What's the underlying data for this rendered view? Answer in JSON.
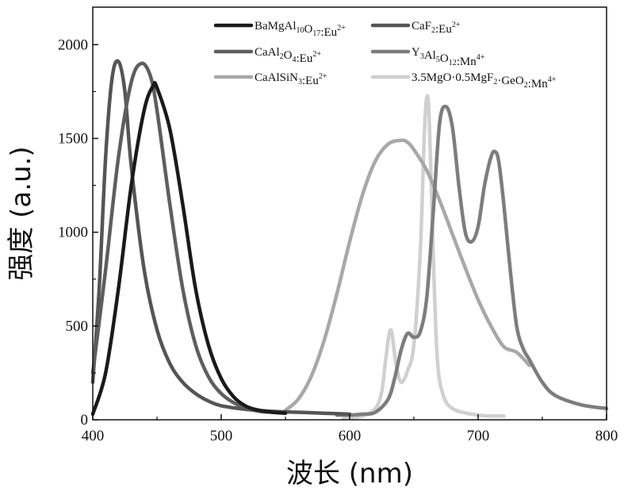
{
  "chart_data": {
    "type": "line",
    "xlabel": "波长 (nm)",
    "ylabel": "强度 (a.u.)",
    "xlim": [
      400,
      800
    ],
    "ylim": [
      0,
      2200
    ],
    "xticks": [
      "400",
      "500",
      "600",
      "700",
      "800"
    ],
    "yticks": [
      "0",
      "500",
      "1000",
      "1500",
      "2000"
    ],
    "grid": false,
    "legend_position": "top-right",
    "series": [
      {
        "name": "BaMgAl10O17:Eu2+",
        "label_parts": [
          [
            "BaMgAl",
            ""
          ],
          [
            "10",
            "sub"
          ],
          [
            "O",
            ""
          ],
          [
            "17",
            "sub"
          ],
          [
            ":Eu",
            ""
          ],
          [
            "2+",
            "sup"
          ]
        ],
        "color": "#1a1a1a",
        "x": [
          400,
          410,
          420,
          430,
          440,
          447,
          450,
          460,
          470,
          480,
          490,
          500,
          510,
          520,
          530,
          540,
          550
        ],
        "y": [
          30,
          250,
          700,
          1250,
          1650,
          1780,
          1770,
          1550,
          1150,
          700,
          400,
          220,
          120,
          70,
          50,
          40,
          35
        ]
      },
      {
        "name": "CaF2:Eu2+",
        "label_parts": [
          [
            "CaF",
            ""
          ],
          [
            "2",
            "sub"
          ],
          [
            ":Eu",
            ""
          ],
          [
            "2+",
            "sup"
          ]
        ],
        "color": "#555555",
        "x": [
          400,
          405,
          410,
          415,
          420,
          425,
          430,
          440,
          450,
          460,
          470,
          480,
          490,
          500,
          520,
          540,
          560,
          580,
          600
        ],
        "y": [
          200,
          700,
          1400,
          1820,
          1910,
          1750,
          1350,
          800,
          480,
          300,
          200,
          140,
          100,
          75,
          55,
          45,
          40,
          35,
          30
        ]
      },
      {
        "name": "CaAl2O4:Eu2+",
        "label_parts": [
          [
            "CaAl",
            ""
          ],
          [
            "2",
            "sub"
          ],
          [
            "O",
            ""
          ],
          [
            "4",
            "sub"
          ],
          [
            ":Eu",
            ""
          ],
          [
            "2+",
            "sup"
          ]
        ],
        "color": "#5e5e5e",
        "x": [
          400,
          410,
          420,
          430,
          438,
          445,
          450,
          460,
          470,
          480,
          490,
          500,
          510,
          520,
          530,
          540
        ],
        "y": [
          250,
          800,
          1400,
          1800,
          1900,
          1830,
          1650,
          1150,
          700,
          400,
          230,
          140,
          90,
          60,
          45,
          40
        ]
      },
      {
        "name": "Y3Al5O12:Mn4+",
        "label_parts": [
          [
            "Y",
            ""
          ],
          [
            "3",
            "sub"
          ],
          [
            "Al",
            ""
          ],
          [
            "5",
            "sub"
          ],
          [
            "O",
            ""
          ],
          [
            "12",
            "sub"
          ],
          [
            ":Mn",
            ""
          ],
          [
            "4+",
            "sup"
          ]
        ],
        "color": "#7d7d7d",
        "x": [
          590,
          600,
          610,
          620,
          630,
          635,
          640,
          645,
          650,
          655,
          660,
          665,
          670,
          675,
          680,
          685,
          690,
          695,
          700,
          705,
          710,
          713,
          716,
          720,
          725,
          730,
          735,
          740,
          750,
          760,
          780,
          800
        ],
        "y": [
          25,
          25,
          30,
          40,
          110,
          220,
          370,
          460,
          440,
          470,
          650,
          1100,
          1580,
          1670,
          1560,
          1250,
          1000,
          950,
          1030,
          1250,
          1400,
          1430,
          1380,
          1150,
          800,
          500,
          380,
          320,
          200,
          130,
          80,
          60
        ]
      },
      {
        "name": "CaAlSiN3:Eu2+",
        "label_parts": [
          [
            "CaAlSiN",
            ""
          ],
          [
            "3",
            "sub"
          ],
          [
            ":Eu",
            ""
          ],
          [
            "2+",
            "sup"
          ]
        ],
        "color": "#a8a8a8",
        "x": [
          550,
          560,
          570,
          580,
          590,
          600,
          610,
          620,
          630,
          640,
          645,
          650,
          660,
          670,
          680,
          690,
          700,
          710,
          720,
          730,
          740
        ],
        "y": [
          50,
          110,
          230,
          420,
          670,
          950,
          1200,
          1380,
          1470,
          1490,
          1480,
          1440,
          1330,
          1170,
          990,
          810,
          640,
          500,
          390,
          360,
          290
        ]
      },
      {
        "name": "3.5MgO·0.5MgF2·GeO2:Mn4+",
        "label_parts": [
          [
            "3.5MgO·0.5MgF",
            ""
          ],
          [
            "2",
            "sub"
          ],
          [
            "·GeO",
            ""
          ],
          [
            "2",
            "sub"
          ],
          [
            ":Mn",
            ""
          ],
          [
            "4+",
            "sup"
          ]
        ],
        "color": "#d0d0d0",
        "x": [
          595,
          610,
          620,
          625,
          628,
          632,
          636,
          640,
          645,
          650,
          655,
          658,
          660,
          662,
          665,
          668,
          672,
          680,
          700,
          720
        ],
        "y": [
          5,
          20,
          60,
          150,
          320,
          480,
          300,
          200,
          260,
          400,
          900,
          1500,
          1720,
          1600,
          900,
          350,
          150,
          60,
          25,
          20
        ]
      }
    ]
  }
}
